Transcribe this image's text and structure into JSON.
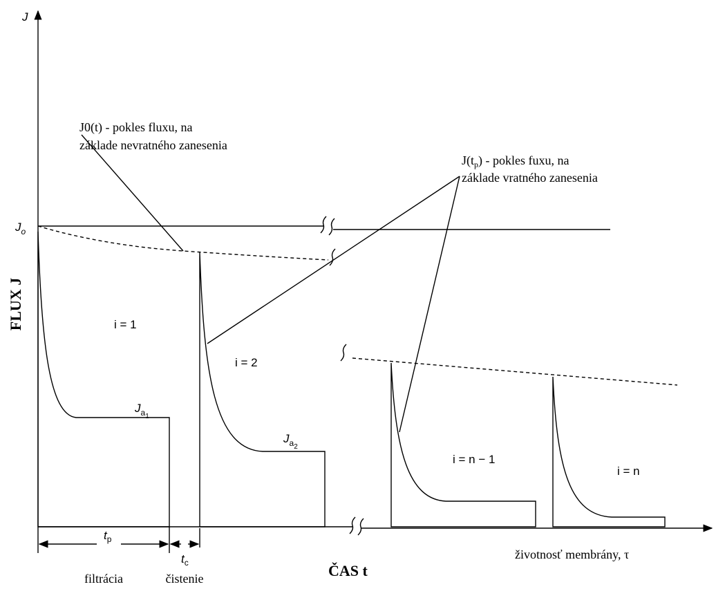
{
  "axis": {
    "y_label": "J",
    "x_label": "ČAS t",
    "y_title": "FLUX J",
    "lifetime": "životnosť membrány, τ"
  },
  "annotations": {
    "irreversible": [
      "J0(t) - pokles fluxu, na",
      "základe nevratného zanesenia"
    ],
    "reversible": {
      "line1": {
        "base": "J(t",
        "sub": "p",
        "rest": ") - pokles fuxu, na"
      },
      "line2": "základe vratného zanesenia"
    }
  },
  "j0": {
    "base": "J",
    "sub": "o"
  },
  "cycles": [
    {
      "label": "i = 1",
      "ja": {
        "base": "J",
        "sub": "a",
        "subsub": "1"
      }
    },
    {
      "label": "i = 2",
      "ja": {
        "base": "J",
        "sub": "a",
        "subsub": "2"
      }
    },
    {
      "label": "i = n − 1"
    },
    {
      "label": "i = n"
    }
  ],
  "times": {
    "tp": {
      "base": "t",
      "sub": "p"
    },
    "tc": {
      "base": "t",
      "sub": "c"
    },
    "filtration": "filtrácia",
    "cleaning": "čistenie"
  }
}
